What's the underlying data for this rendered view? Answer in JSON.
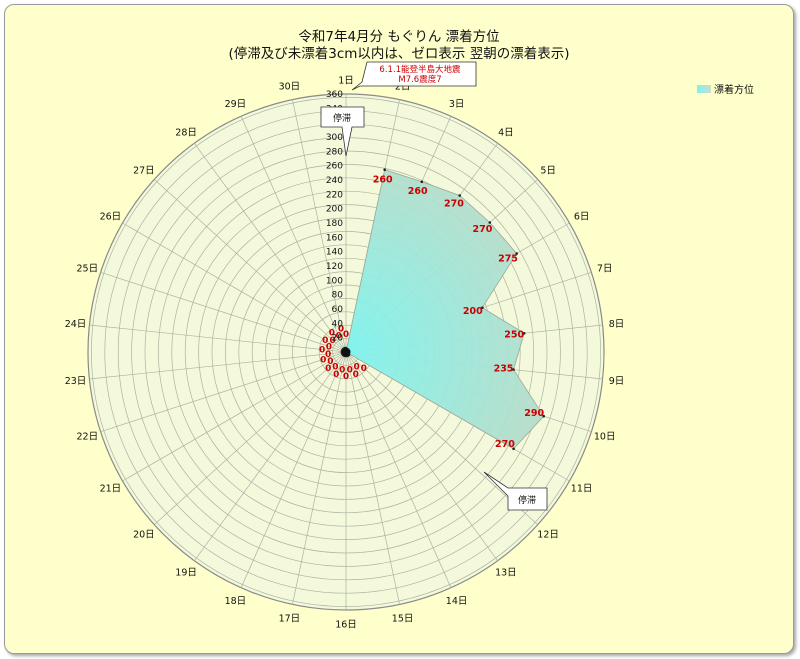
{
  "chart_data": {
    "type": "radar",
    "title": "令和7年4月分  もぐりん  漂着方位",
    "subtitle": "(停滞及び未漂着3cm以内は、ゼロ表示  翌朝の漂着表示)",
    "legend_label": "漂着方位",
    "rlim": [
      0,
      360
    ],
    "rtick_labels": [
      "20",
      "40",
      "60",
      "80",
      "100",
      "120",
      "140",
      "160",
      "180",
      "200",
      "220",
      "240",
      "260",
      "280",
      "300",
      "320",
      "340",
      "360"
    ],
    "categories": [
      "1日",
      "2日",
      "3日",
      "4日",
      "5日",
      "6日",
      "7日",
      "8日",
      "9日",
      "10日",
      "11日",
      "12日",
      "13日",
      "14日",
      "15日",
      "16日",
      "17日",
      "18日",
      "19日",
      "20日",
      "21日",
      "22日",
      "23日",
      "24日",
      "25日",
      "26日",
      "27日",
      "28日",
      "29日",
      "30日"
    ],
    "values": [
      0,
      260,
      260,
      270,
      270,
      275,
      200,
      250,
      235,
      290,
      270,
      0,
      0,
      0,
      0,
      0,
      0,
      0,
      0,
      0,
      0,
      0,
      0,
      0,
      0,
      0,
      0,
      0,
      0,
      0
    ],
    "data_labels": [
      "0",
      "260",
      "260",
      "270",
      "270",
      "275",
      "200",
      "250",
      "235",
      "290",
      "270",
      "0",
      "0",
      "0",
      "0",
      "0",
      "0",
      "0",
      "0",
      "0",
      "0",
      "0",
      "0",
      "0",
      "0",
      "0",
      "0",
      "0",
      "0",
      "0"
    ],
    "legend_position": "top-right",
    "grid": true,
    "colors": {
      "fill_inner": "#7ef4ef",
      "fill_outer": "#c5d6c2",
      "plot_bg": "#f4f9dc",
      "label": "#cc0000"
    }
  },
  "annotations": {
    "top_note_line1": "6.1.1能登半島大地震",
    "top_note_line2": "M7.6震度7",
    "stagnation_top": "停滞",
    "stagnation_bottom": "停滞"
  }
}
